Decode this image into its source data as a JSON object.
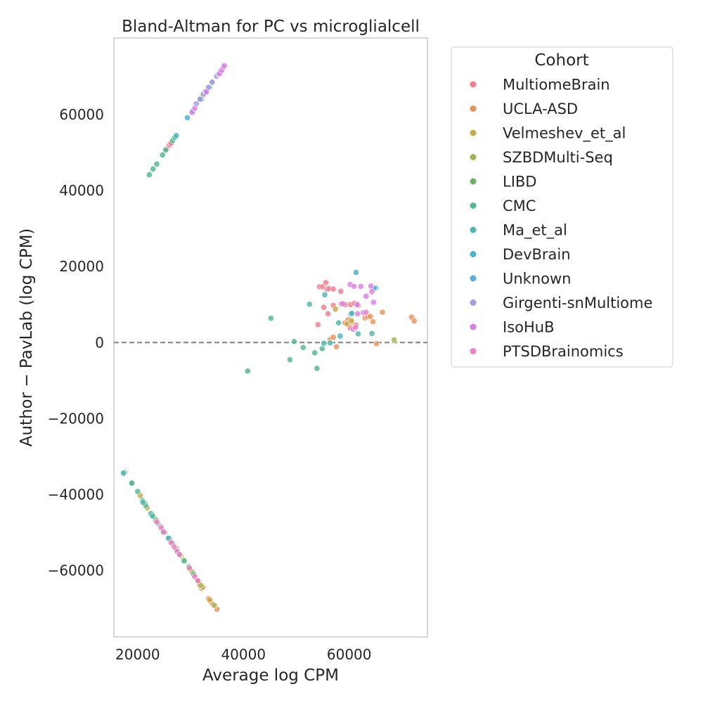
{
  "chart_data": {
    "type": "scatter",
    "title": "Bland-Altman for PC vs microglialcell",
    "xlabel": "Average log CPM",
    "ylabel": "Author − PavLab (log CPM)",
    "xlim": [
      15500,
      74800
    ],
    "ylim": [
      -77500,
      80200
    ],
    "xticks": [
      20000,
      40000,
      60000
    ],
    "xtick_labels": [
      "20000",
      "40000",
      "60000"
    ],
    "yticks": [
      -60000,
      -40000,
      -20000,
      0,
      20000,
      40000,
      60000
    ],
    "ytick_labels": [
      "−60000",
      "−40000",
      "−20000",
      "0",
      "20000",
      "40000",
      "60000"
    ],
    "reference_line": 0,
    "grid": false,
    "legend": {
      "title": "Cohort",
      "placement": "outside-right"
    },
    "series": [
      {
        "name": "MultiomeBrain",
        "color": "#f37b8c",
        "points": [
          [
            25500,
            51000
          ],
          [
            26000,
            52000
          ],
          [
            26300,
            52500
          ],
          [
            54400,
            14700
          ],
          [
            55000,
            14700
          ],
          [
            55600,
            15800
          ],
          [
            55800,
            14100
          ],
          [
            56200,
            14200
          ],
          [
            57000,
            14100
          ],
          [
            58400,
            13500
          ],
          [
            55200,
            9300
          ],
          [
            56000,
            7600
          ],
          [
            57000,
            9800
          ],
          [
            58500,
            10200
          ],
          [
            59300,
            10000
          ],
          [
            60300,
            10000
          ],
          [
            61000,
            10300
          ],
          [
            61700,
            9800
          ],
          [
            54100,
            4700
          ],
          [
            60200,
            3900
          ],
          [
            61300,
            4600
          ]
        ]
      },
      {
        "name": "UCLA-ASD",
        "color": "#e8925a",
        "points": [
          [
            33400,
            -67400
          ],
          [
            33800,
            -68200
          ],
          [
            34200,
            -68900
          ],
          [
            35000,
            -70200
          ],
          [
            31700,
            -63800
          ],
          [
            32100,
            -64700
          ],
          [
            31400,
            -62800
          ],
          [
            59200,
            5200
          ],
          [
            59800,
            6000
          ],
          [
            60500,
            5400
          ],
          [
            63000,
            6500
          ],
          [
            63500,
            6800
          ],
          [
            64000,
            6900
          ],
          [
            64500,
            5500
          ],
          [
            66300,
            8000
          ],
          [
            71800,
            6700
          ],
          [
            72300,
            5700
          ],
          [
            65200,
            -300
          ],
          [
            57600,
            -1100
          ],
          [
            56400,
            800
          ],
          [
            57000,
            1400
          ]
        ]
      },
      {
        "name": "Velmeshev_et_al",
        "color": "#c9a84b",
        "points": [
          [
            20500,
            -40300
          ],
          [
            21800,
            -43500
          ],
          [
            27400,
            -54300
          ],
          [
            28200,
            -56000
          ],
          [
            30600,
            -60800
          ],
          [
            32300,
            -64400
          ],
          [
            33600,
            -67700
          ],
          [
            57400,
            8800
          ],
          [
            59600,
            4900
          ],
          [
            60400,
            5800
          ]
        ]
      },
      {
        "name": "SZBDMulti-Seq",
        "color": "#a7b34f",
        "points": [
          [
            28700,
            -57200
          ],
          [
            29600,
            -59000
          ],
          [
            30300,
            -60400
          ],
          [
            31300,
            -62700
          ],
          [
            31900,
            -63900
          ],
          [
            34500,
            -69200
          ],
          [
            68500,
            700
          ],
          [
            31900,
            64500
          ],
          [
            32300,
            65000
          ]
        ]
      },
      {
        "name": "LIBD",
        "color": "#6bb560",
        "points": [
          [
            18800,
            -37000
          ],
          [
            21300,
            -42200
          ],
          [
            22900,
            -45500
          ],
          [
            23400,
            -46600
          ],
          [
            31800,
            64200
          ],
          [
            32600,
            65800
          ]
        ]
      },
      {
        "name": "CMC",
        "color": "#51b894",
        "points": [
          [
            17500,
            -34200
          ],
          [
            18900,
            -37000
          ],
          [
            20000,
            -39200
          ],
          [
            20900,
            -41600
          ],
          [
            21500,
            -42900
          ],
          [
            22500,
            -45000
          ],
          [
            23800,
            -47600
          ],
          [
            24600,
            -49200
          ],
          [
            25100,
            -50000
          ],
          [
            26000,
            -51600
          ],
          [
            26600,
            -52900
          ],
          [
            28000,
            -55800
          ],
          [
            28800,
            -57500
          ],
          [
            29700,
            -59100
          ],
          [
            30600,
            -61100
          ],
          [
            22200,
            44200
          ],
          [
            22900,
            45700
          ],
          [
            23600,
            47000
          ],
          [
            24700,
            49400
          ],
          [
            25300,
            50700
          ],
          [
            26600,
            53200
          ],
          [
            27000,
            54000
          ],
          [
            30400,
            61000
          ],
          [
            32000,
            64000
          ],
          [
            40800,
            -7500
          ],
          [
            45200,
            6400
          ],
          [
            48800,
            -4500
          ],
          [
            49600,
            300
          ],
          [
            51300,
            -1300
          ],
          [
            53500,
            -2700
          ],
          [
            53900,
            -6800
          ],
          [
            54900,
            -1600
          ]
        ]
      },
      {
        "name": "Ma_et_al",
        "color": "#50b7ae",
        "points": [
          [
            17300,
            -34400
          ],
          [
            21000,
            -42100
          ],
          [
            22800,
            -45700
          ],
          [
            24800,
            -49600
          ],
          [
            25800,
            -51500
          ],
          [
            27300,
            -54600
          ],
          [
            52500,
            10100
          ],
          [
            55400,
            12600
          ],
          [
            55200,
            -200
          ],
          [
            56400,
            -100
          ],
          [
            58000,
            5200
          ],
          [
            61700,
            2300
          ],
          [
            64300,
            2400
          ],
          [
            60300,
            7500
          ],
          [
            33600,
            67200
          ],
          [
            34100,
            68400
          ]
        ]
      },
      {
        "name": "DevBrain",
        "color": "#4ab2cb",
        "points": [
          [
            27300,
            54500
          ],
          [
            29400,
            59200
          ],
          [
            58300,
            1700
          ],
          [
            60500,
            7700
          ],
          [
            61300,
            18500
          ],
          [
            65000,
            14400
          ]
        ]
      },
      {
        "name": "Unknown",
        "color": "#5aace6",
        "points": [
          [
            33000,
            66400
          ],
          [
            64700,
            14300
          ]
        ]
      },
      {
        "name": "Girgenti-snMultiome",
        "color": "#a59be8",
        "points": [
          [
            31100,
            62900
          ],
          [
            31800,
            64100
          ],
          [
            32400,
            65400
          ],
          [
            32800,
            66100
          ],
          [
            33400,
            67200
          ],
          [
            34100,
            68600
          ],
          [
            34900,
            70100
          ],
          [
            35300,
            70700
          ],
          [
            35700,
            71500
          ]
        ]
      },
      {
        "name": "IsoHuB",
        "color": "#d97fe6",
        "points": [
          [
            30300,
            60600
          ],
          [
            30800,
            61700
          ],
          [
            33000,
            66000
          ],
          [
            35500,
            70800
          ],
          [
            35900,
            71700
          ],
          [
            36200,
            72500
          ],
          [
            36400,
            72900
          ],
          [
            60200,
            15300
          ],
          [
            60900,
            14800
          ],
          [
            62200,
            14800
          ],
          [
            64100,
            14900
          ],
          [
            64300,
            13400
          ],
          [
            64600,
            10600
          ],
          [
            61600,
            7600
          ],
          [
            62700,
            7900
          ],
          [
            63200,
            12200
          ],
          [
            60800,
            3500
          ],
          [
            61500,
            10000
          ],
          [
            58800,
            10200
          ]
        ]
      },
      {
        "name": "PTSDBrainomics",
        "color": "#ef7fbf",
        "points": [
          [
            23600,
            -47200
          ],
          [
            24400,
            -48600
          ],
          [
            24900,
            -49900
          ],
          [
            26300,
            -52600
          ],
          [
            26900,
            -53800
          ],
          [
            27500,
            -55000
          ],
          [
            27900,
            -55800
          ],
          [
            29800,
            -59400
          ],
          [
            30800,
            -61600
          ],
          [
            31400,
            -62700
          ],
          [
            63200,
            8000
          ],
          [
            61200,
            4000
          ]
        ]
      }
    ]
  }
}
